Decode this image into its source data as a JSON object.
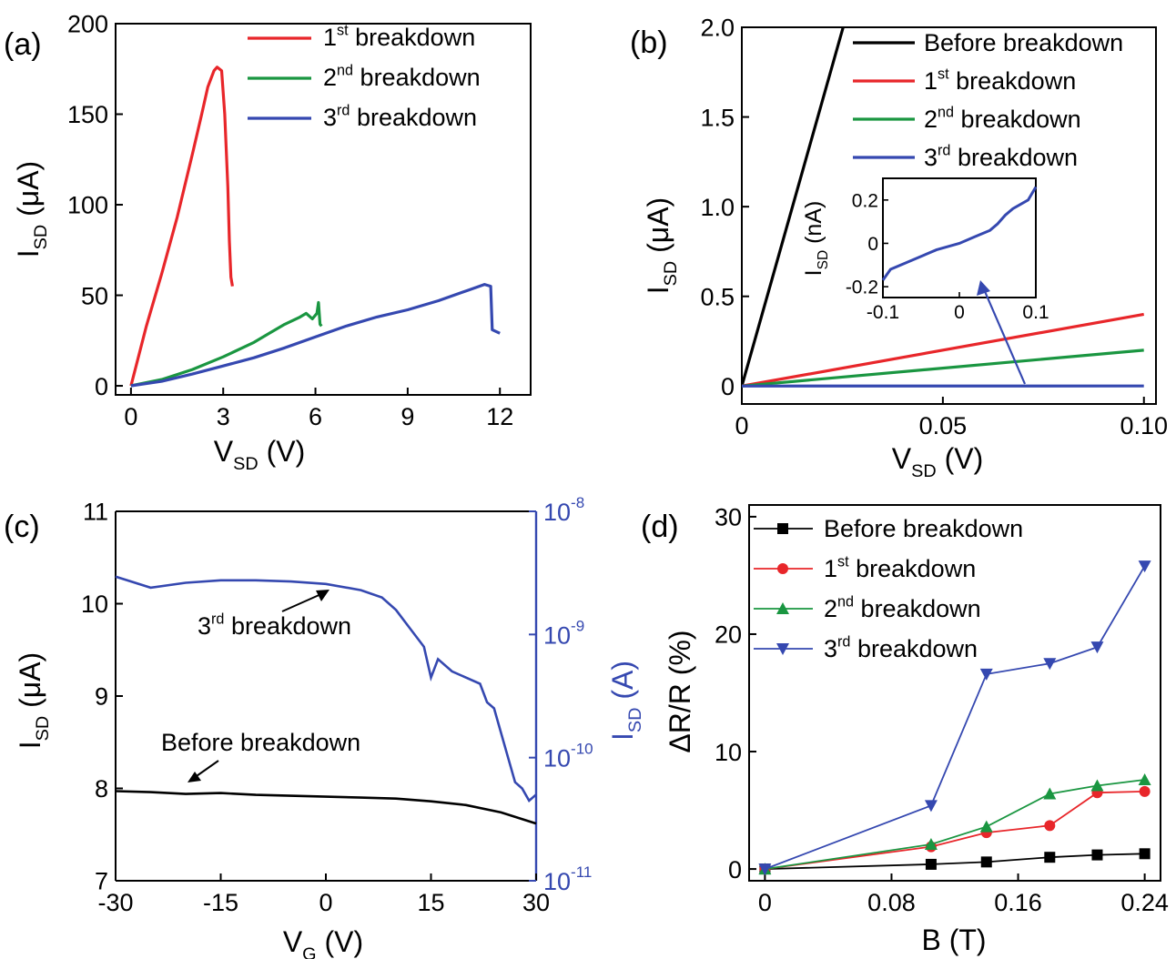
{
  "chart_data": [
    {
      "panel_label": "(a)",
      "type": "line",
      "xlabel": "V",
      "xlabel_sub": "SD",
      "xlabel_unit": " (V)",
      "ylabel": "I",
      "ylabel_sub": "SD",
      "ylabel_unit": " (μA)",
      "xlim": [
        -0.5,
        13
      ],
      "ylim": [
        -5,
        200
      ],
      "xticks": [
        0,
        3,
        6,
        9,
        12
      ],
      "xtick_labels": [
        "0",
        "3",
        "6",
        "9",
        "12"
      ],
      "yticks": [
        0,
        50,
        100,
        150,
        200
      ],
      "ytick_labels": [
        "0",
        "50",
        "100",
        "150",
        "200"
      ],
      "legend_position": "top-right",
      "legend": [
        {
          "base": "1",
          "sup": "st",
          "rest": " breakdown"
        },
        {
          "base": "2",
          "sup": "nd",
          "rest": " breakdown"
        },
        {
          "base": "3",
          "sup": "rd",
          "rest": " breakdown"
        }
      ],
      "series": [
        {
          "color": "#e8262a",
          "points": [
            [
              0,
              0
            ],
            [
              0.5,
              33
            ],
            [
              1,
              62
            ],
            [
              1.5,
              93
            ],
            [
              2,
              128
            ],
            [
              2.3,
              150
            ],
            [
              2.5,
              165
            ],
            [
              2.7,
              174
            ],
            [
              2.8,
              176
            ],
            [
              2.95,
              174
            ],
            [
              3.05,
              150
            ],
            [
              3.15,
              110
            ],
            [
              3.2,
              80
            ],
            [
              3.25,
              60
            ],
            [
              3.3,
              55
            ]
          ]
        },
        {
          "color": "#1a9641",
          "points": [
            [
              0,
              0
            ],
            [
              1,
              3.5
            ],
            [
              2,
              9
            ],
            [
              3,
              16
            ],
            [
              4,
              24
            ],
            [
              4.5,
              29
            ],
            [
              5,
              34
            ],
            [
              5.5,
              38
            ],
            [
              5.7,
              40
            ],
            [
              5.9,
              37
            ],
            [
              6.05,
              40
            ],
            [
              6.1,
              46
            ],
            [
              6.15,
              34
            ],
            [
              6.2,
              33
            ]
          ]
        },
        {
          "color": "#3548b0",
          "points": [
            [
              0,
              0
            ],
            [
              1,
              2.5
            ],
            [
              2,
              6.5
            ],
            [
              3,
              11
            ],
            [
              4,
              15.5
            ],
            [
              5,
              21
            ],
            [
              6,
              27
            ],
            [
              7,
              33
            ],
            [
              8,
              38
            ],
            [
              9,
              42
            ],
            [
              10,
              47
            ],
            [
              11,
              53
            ],
            [
              11.5,
              56
            ],
            [
              11.7,
              55
            ],
            [
              11.75,
              31
            ],
            [
              12,
              29
            ]
          ]
        }
      ]
    },
    {
      "panel_label": "(b)",
      "type": "line",
      "xlabel": "V",
      "xlabel_sub": "SD",
      "xlabel_unit": " (V)",
      "ylabel": "I",
      "ylabel_sub": "SD",
      "ylabel_unit": " (μA)",
      "xlim": [
        0,
        0.103
      ],
      "ylim": [
        -0.1,
        2.0
      ],
      "xticks": [
        0,
        0.05,
        0.1
      ],
      "xtick_labels": [
        "0",
        "0.05",
        "0.10"
      ],
      "yticks": [
        0,
        0.5,
        1.0,
        1.5,
        2.0
      ],
      "ytick_labels": [
        "0",
        "0.5",
        "1.0",
        "1.5",
        "2.0"
      ],
      "legend_position": "top-right",
      "legend": [
        {
          "base": "Before breakdown",
          "sup": "",
          "rest": ""
        },
        {
          "base": "1",
          "sup": "st",
          "rest": " breakdown"
        },
        {
          "base": "2",
          "sup": "nd",
          "rest": " breakdown"
        },
        {
          "base": "3",
          "sup": "rd",
          "rest": " breakdown"
        }
      ],
      "series": [
        {
          "color": "#000000",
          "points": [
            [
              0,
              0
            ],
            [
              0.0252,
              2.0
            ]
          ]
        },
        {
          "color": "#e8262a",
          "points": [
            [
              0,
              0
            ],
            [
              0.1,
              0.4
            ]
          ]
        },
        {
          "color": "#1a9641",
          "points": [
            [
              0,
              0
            ],
            [
              0.1,
              0.2
            ]
          ]
        },
        {
          "color": "#3548b0",
          "points": [
            [
              0,
              0
            ],
            [
              0.1,
              0.0002
            ]
          ]
        }
      ],
      "inset": {
        "xlabel": "",
        "ylabel": "I",
        "ylabel_sub": "SD",
        "ylabel_unit": " (nA)",
        "xlim": [
          -0.1,
          0.1
        ],
        "ylim": [
          -0.25,
          0.3
        ],
        "xticks": [
          -0.1,
          0,
          0.1
        ],
        "xtick_labels": [
          "-0.1",
          "0",
          "0.1"
        ],
        "yticks": [
          -0.2,
          0,
          0.2
        ],
        "ytick_labels": [
          "-0.2",
          "0",
          "0.2"
        ],
        "color": "#3548b0",
        "points": [
          [
            -0.1,
            -0.17
          ],
          [
            -0.09,
            -0.12
          ],
          [
            -0.07,
            -0.09
          ],
          [
            -0.05,
            -0.06
          ],
          [
            -0.03,
            -0.03
          ],
          [
            -0.01,
            -0.01
          ],
          [
            0,
            0
          ],
          [
            0.02,
            0.03
          ],
          [
            0.04,
            0.06
          ],
          [
            0.05,
            0.09
          ],
          [
            0.06,
            0.13
          ],
          [
            0.07,
            0.16
          ],
          [
            0.08,
            0.18
          ],
          [
            0.09,
            0.2
          ],
          [
            0.1,
            0.26
          ]
        ]
      }
    },
    {
      "panel_label": "(c)",
      "type": "line",
      "xlabel": "V",
      "xlabel_sub": "G",
      "xlabel_unit": " (V)",
      "ylabel": "I",
      "ylabel_sub": "SD",
      "ylabel_unit": " (μA)",
      "y2label": "I",
      "y2label_sub": "SD",
      "y2label_unit": " (A)",
      "xlim": [
        -30,
        30
      ],
      "ylim": [
        7,
        11
      ],
      "y2lim_log10": [
        -11,
        -8
      ],
      "y2_scale": "log",
      "xticks": [
        -30,
        -15,
        0,
        15,
        30
      ],
      "xtick_labels": [
        "-30",
        "-15",
        "0",
        "15",
        "30"
      ],
      "yticks": [
        7,
        8,
        9,
        10,
        11
      ],
      "ytick_labels": [
        "7",
        "8",
        "9",
        "10",
        "11"
      ],
      "y2ticks_log10": [
        -11,
        -10,
        -9,
        -8
      ],
      "y2tick_labels": [
        {
          "base": "10",
          "exp": "-11"
        },
        {
          "base": "10",
          "exp": "-10"
        },
        {
          "base": "10",
          "exp": "-9"
        },
        {
          "base": "10",
          "exp": "-8"
        }
      ],
      "annotations": [
        {
          "base": "3",
          "sup": "rd",
          "rest": " breakdown",
          "arrow_to": [
            0,
            10.15
          ]
        },
        {
          "base": "Before breakdown",
          "sup": "",
          "rest": "",
          "arrow_to": [
            -20,
            7.95
          ]
        }
      ],
      "series": [
        {
          "color": "#000000",
          "axis": "left",
          "points": [
            [
              -30,
              7.97
            ],
            [
              -25,
              7.96
            ],
            [
              -20,
              7.94
            ],
            [
              -15,
              7.95
            ],
            [
              -10,
              7.93
            ],
            [
              -5,
              7.92
            ],
            [
              0,
              7.91
            ],
            [
              5,
              7.9
            ],
            [
              10,
              7.89
            ],
            [
              15,
              7.86
            ],
            [
              20,
              7.82
            ],
            [
              25,
              7.74
            ],
            [
              30,
              7.62
            ]
          ]
        },
        {
          "color": "#3548b0",
          "axis": "right",
          "points_log10": [
            [
              -30,
              -8.53
            ],
            [
              -25,
              -8.62
            ],
            [
              -20,
              -8.58
            ],
            [
              -15,
              -8.56
            ],
            [
              -10,
              -8.56
            ],
            [
              -5,
              -8.57
            ],
            [
              0,
              -8.59
            ],
            [
              5,
              -8.64
            ],
            [
              8,
              -8.7
            ],
            [
              10,
              -8.8
            ],
            [
              12,
              -8.95
            ],
            [
              14,
              -9.1
            ],
            [
              15,
              -9.35
            ],
            [
              16,
              -9.2
            ],
            [
              18,
              -9.3
            ],
            [
              20,
              -9.35
            ],
            [
              22,
              -9.4
            ],
            [
              23,
              -9.55
            ],
            [
              24,
              -9.6
            ],
            [
              25,
              -9.8
            ],
            [
              26,
              -10
            ],
            [
              27,
              -10.2
            ],
            [
              28,
              -10.25
            ],
            [
              29,
              -10.35
            ],
            [
              30,
              -10.3
            ]
          ]
        }
      ]
    },
    {
      "panel_label": "(d)",
      "type": "line",
      "xlabel": "B (T)",
      "ylabel": "ΔR/R (%)",
      "xlim": [
        -0.01,
        0.25
      ],
      "ylim": [
        -1,
        31
      ],
      "xticks": [
        0,
        0.08,
        0.16,
        0.24
      ],
      "xtick_labels": [
        "0",
        "0.08",
        "0.16",
        "0.24"
      ],
      "yticks": [
        0,
        10,
        20,
        30
      ],
      "ytick_labels": [
        "0",
        "10",
        "20",
        "30"
      ],
      "legend_position": "top-left",
      "legend": [
        {
          "base": "Before breakdown",
          "sup": "",
          "rest": ""
        },
        {
          "base": "1",
          "sup": "st",
          "rest": " breakdown"
        },
        {
          "base": "2",
          "sup": "nd",
          "rest": " breakdown"
        },
        {
          "base": "3",
          "sup": "rd",
          "rest": " breakdown"
        }
      ],
      "series": [
        {
          "color": "#000000",
          "marker": "square",
          "x": [
            0,
            0.105,
            0.14,
            0.18,
            0.21,
            0.24
          ],
          "y": [
            0,
            0.4,
            0.6,
            1.0,
            1.2,
            1.3
          ]
        },
        {
          "color": "#e8262a",
          "marker": "circle",
          "x": [
            0,
            0.105,
            0.14,
            0.18,
            0.21,
            0.24
          ],
          "y": [
            0,
            1.9,
            3.1,
            3.7,
            6.5,
            6.6
          ]
        },
        {
          "color": "#1a9641",
          "marker": "triangle-up",
          "x": [
            0,
            0.105,
            0.14,
            0.18,
            0.21,
            0.24
          ],
          "y": [
            0,
            2.1,
            3.6,
            6.4,
            7.1,
            7.6
          ]
        },
        {
          "color": "#3548b0",
          "marker": "triangle-down",
          "x": [
            0,
            0.105,
            0.14,
            0.18,
            0.21,
            0.24
          ],
          "y": [
            0,
            5.4,
            16.6,
            17.5,
            18.9,
            25.8
          ]
        }
      ]
    }
  ]
}
